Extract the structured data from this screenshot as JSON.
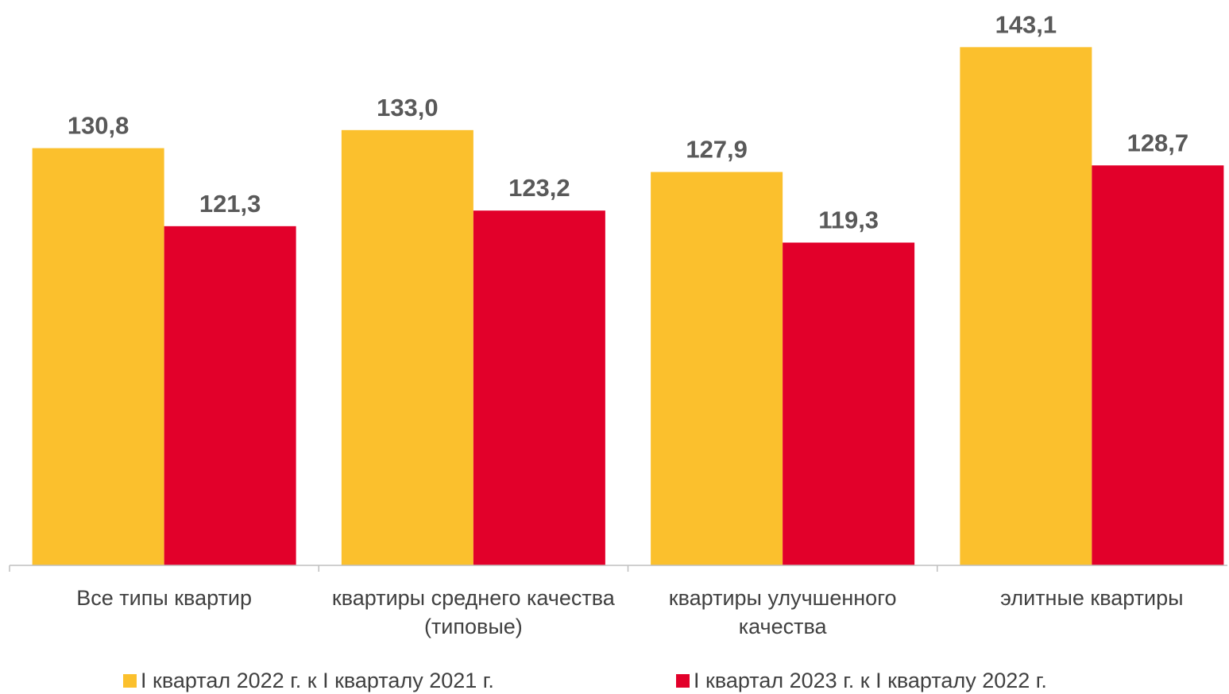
{
  "chart_data": {
    "type": "bar",
    "categories": [
      "Все типы квартир",
      "квартиры среднего качества (типовые)",
      "квартиры улучшенного качества",
      "элитные квартиры"
    ],
    "series": [
      {
        "name": "I квартал 2022 г. к I кварталу 2021 г.",
        "color": "#FBC02D",
        "values": [
          130.8,
          133.0,
          127.9,
          143.1
        ],
        "value_labels": [
          "130,8",
          "133,0",
          "127,9",
          "143,1"
        ]
      },
      {
        "name": "I квартал 2023 г. к I кварталу 2022 г.",
        "color": "#E2002A",
        "values": [
          121.3,
          123.2,
          119.3,
          128.7
        ],
        "value_labels": [
          "121,3",
          "123,2",
          "119,3",
          "128,7"
        ]
      }
    ],
    "ylim": [
      80,
      150
    ]
  }
}
